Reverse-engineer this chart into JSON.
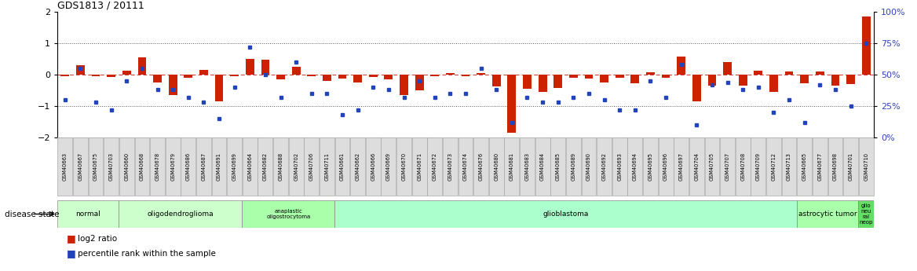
{
  "title": "GDS1813 / 20111",
  "samples": [
    "GSM40663",
    "GSM40667",
    "GSM40675",
    "GSM40703",
    "GSM40660",
    "GSM40668",
    "GSM40678",
    "GSM40679",
    "GSM40686",
    "GSM40687",
    "GSM40691",
    "GSM40699",
    "GSM40664",
    "GSM40682",
    "GSM40688",
    "GSM40702",
    "GSM40706",
    "GSM40711",
    "GSM40661",
    "GSM40662",
    "GSM40666",
    "GSM40669",
    "GSM40670",
    "GSM40671",
    "GSM40672",
    "GSM40673",
    "GSM40674",
    "GSM40676",
    "GSM40680",
    "GSM40681",
    "GSM40683",
    "GSM40684",
    "GSM40685",
    "GSM40689",
    "GSM40690",
    "GSM40692",
    "GSM40693",
    "GSM40694",
    "GSM40695",
    "GSM40696",
    "GSM40697",
    "GSM40704",
    "GSM40705",
    "GSM40707",
    "GSM40708",
    "GSM40709",
    "GSM40712",
    "GSM40713",
    "GSM40665",
    "GSM40677",
    "GSM40698",
    "GSM40701",
    "GSM40710"
  ],
  "log2_ratio": [
    -0.05,
    0.3,
    -0.05,
    -0.08,
    0.12,
    0.55,
    -0.25,
    -0.65,
    -0.1,
    0.15,
    -0.85,
    -0.05,
    0.5,
    0.48,
    -0.15,
    0.25,
    -0.05,
    -0.2,
    -0.12,
    -0.25,
    -0.08,
    -0.15,
    -0.65,
    -0.5,
    -0.05,
    0.05,
    -0.04,
    0.05,
    -0.38,
    -1.85,
    -0.45,
    -0.55,
    -0.42,
    -0.1,
    -0.12,
    -0.25,
    -0.1,
    -0.28,
    0.08,
    -0.1,
    0.58,
    -0.85,
    -0.35,
    0.4,
    -0.35,
    0.12,
    -0.55,
    0.1,
    -0.28,
    0.1,
    -0.35,
    -0.3,
    1.85
  ],
  "percentile": [
    30,
    55,
    28,
    22,
    45,
    55,
    38,
    38,
    32,
    28,
    15,
    40,
    72,
    50,
    32,
    60,
    35,
    35,
    18,
    22,
    40,
    38,
    32,
    45,
    32,
    35,
    35,
    55,
    38,
    12,
    32,
    28,
    28,
    32,
    35,
    30,
    22,
    22,
    45,
    32,
    58,
    10,
    42,
    44,
    38,
    40,
    20,
    30,
    12,
    42,
    38,
    25,
    75
  ],
  "disease_groups": [
    {
      "label": "normal",
      "start": 0,
      "end": 4,
      "color": "#ccffcc"
    },
    {
      "label": "oligodendroglioma",
      "start": 4,
      "end": 12,
      "color": "#ccffcc"
    },
    {
      "label": "anaplastic\noligostrocytoma",
      "start": 12,
      "end": 18,
      "color": "#aaffaa"
    },
    {
      "label": "glioblastoma",
      "start": 18,
      "end": 48,
      "color": "#aaffcc"
    },
    {
      "label": "astrocytic tumor",
      "start": 48,
      "end": 52,
      "color": "#aaffaa"
    },
    {
      "label": "glio\nneu\nral\nneop",
      "start": 52,
      "end": 53,
      "color": "#66dd66"
    }
  ],
  "ylim": [
    -2,
    2
  ],
  "yticks": [
    -2,
    -1,
    0,
    1,
    2
  ],
  "y2ticks": [
    0,
    25,
    50,
    75,
    100
  ],
  "red_color": "#cc2200",
  "blue_color": "#2244bb",
  "bg_color": "#ffffff"
}
